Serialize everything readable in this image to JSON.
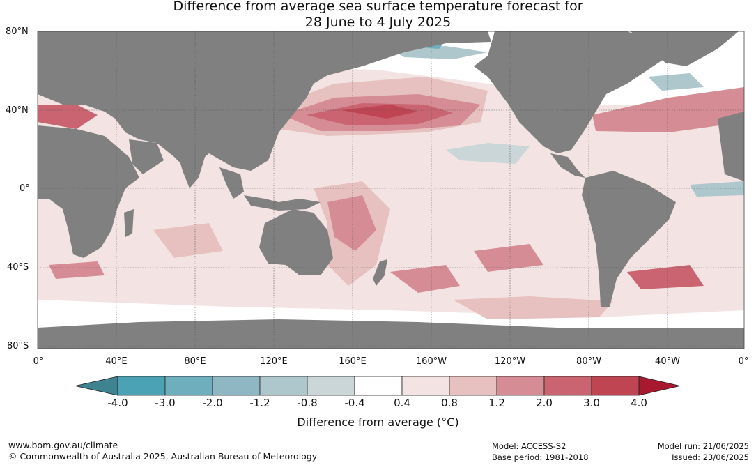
{
  "title": {
    "line1": "Difference from average sea surface temperature forecast for",
    "line2": "28 June to 4 July 2025"
  },
  "map": {
    "lat_labels": [
      "80°N",
      "40°N",
      "0°",
      "40°S",
      "80°S"
    ],
    "lon_labels": [
      "0°",
      "40°E",
      "80°E",
      "120°E",
      "160°E",
      "160°W",
      "120°W",
      "80°W",
      "40°W",
      "0°"
    ],
    "land_color": "#808080",
    "ocean_color": "#ffffff"
  },
  "colorbar": {
    "title": "Difference from average (°C)",
    "tick_labels": [
      "-4.0",
      "-3.0",
      "-2.0",
      "-1.2",
      "-0.8",
      "-0.4",
      "0.4",
      "0.8",
      "1.2",
      "2.0",
      "3.0",
      "4.0"
    ],
    "colors": [
      "#3d8390",
      "#4ba2b4",
      "#6eaebd",
      "#8fb7c3",
      "#aec7cc",
      "#cad6d8",
      "#ffffff",
      "#f3e4e3",
      "#e6c1bf",
      "#d58c94",
      "#c96470",
      "#bf4553",
      "#a8182f"
    ]
  },
  "footer": {
    "website": "www.bom.gov.au/climate",
    "copyright": "© Commonwealth of Australia 2025, Australian Bureau of Meteorology",
    "model": "Model: ACCESS-S2",
    "base_period": "Base period: 1981-2018",
    "model_run": "Model run: 21/06/2025",
    "issued": "Issued: 23/06/2025"
  }
}
